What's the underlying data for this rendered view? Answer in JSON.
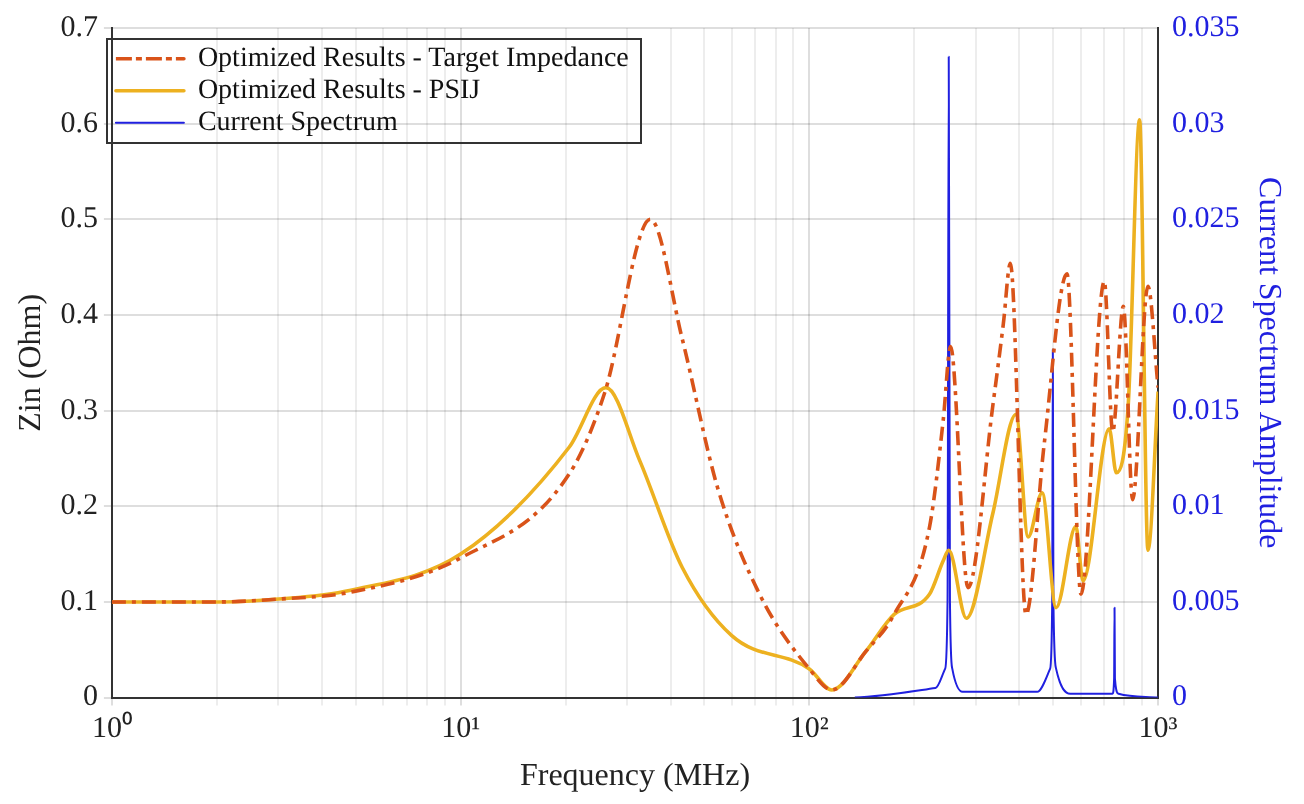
{
  "chart_data": {
    "type": "line",
    "xlabel": "Frequency (MHz)",
    "ylabel": "Zin (Ohm)",
    "y2label": "Current Spectrum Amplitude",
    "log": "x",
    "grid": true,
    "legend": "top left",
    "marker": "none",
    "xlim": [
      1,
      1000
    ],
    "xticks": [
      {
        "value": 1,
        "label": "10⁰"
      },
      {
        "value": 2,
        "label": null
      },
      {
        "value": 3,
        "label": null
      },
      {
        "value": 4,
        "label": null
      },
      {
        "value": 5,
        "label": null
      },
      {
        "value": 6,
        "label": null
      },
      {
        "value": 7,
        "label": null
      },
      {
        "value": 8,
        "label": null
      },
      {
        "value": 9,
        "label": null
      },
      {
        "value": 10,
        "label": "10¹"
      },
      {
        "value": 20,
        "label": null
      },
      {
        "value": 30,
        "label": null
      },
      {
        "value": 40,
        "label": null
      },
      {
        "value": 50,
        "label": null
      },
      {
        "value": 60,
        "label": null
      },
      {
        "value": 70,
        "label": null
      },
      {
        "value": 80,
        "label": null
      },
      {
        "value": 90,
        "label": null
      },
      {
        "value": 100,
        "label": "10²"
      },
      {
        "value": 200,
        "label": null
      },
      {
        "value": 300,
        "label": null
      },
      {
        "value": 400,
        "label": null
      },
      {
        "value": 500,
        "label": null
      },
      {
        "value": 600,
        "label": null
      },
      {
        "value": 700,
        "label": null
      },
      {
        "value": 800,
        "label": null
      },
      {
        "value": 900,
        "label": null
      },
      {
        "value": 1000,
        "label": "10³"
      }
    ],
    "ylim": [
      0,
      0.7
    ],
    "yticks": [
      0,
      0.1,
      0.2,
      0.3,
      0.4,
      0.5,
      0.6,
      0.7
    ],
    "y2lim": [
      0,
      0.035
    ],
    "y2ticks": [
      0,
      0.005,
      0.01,
      0.015,
      0.02,
      0.025,
      0.03,
      0.035
    ],
    "series": [
      {
        "name": "Optimized Results - Target Impedance",
        "color": "#d95319",
        "line_style": "dashed",
        "x": [
          1,
          2,
          3,
          4.8,
          10,
          20.5,
          25.9,
          35,
          43.2,
          54.5,
          72,
          100,
          116,
          145,
          175,
          221,
          242,
          254,
          285,
          336,
          360,
          377,
          418,
          471,
          548,
          601,
          701,
          741,
          795,
          845,
          935,
          1000
        ],
        "values": [
          0.1,
          0.1,
          0.103,
          0.11,
          0.146,
          0.234,
          0.319,
          0.5,
          0.375,
          0.22,
          0.108,
          0.03,
          0.008,
          0.048,
          0.087,
          0.178,
          0.29,
          0.367,
          0.115,
          0.306,
          0.391,
          0.454,
          0.087,
          0.264,
          0.443,
          0.108,
          0.435,
          0.278,
          0.409,
          0.207,
          0.43,
          0.324
        ]
      },
      {
        "name": "Optimized Results - PSIJ",
        "color": "#edb120",
        "line_style": "solid",
        "x": [
          1,
          2,
          3,
          4.8,
          10,
          20.5,
          26.1,
          32.6,
          43.2,
          59.8,
          100,
          116,
          145,
          175,
          221,
          242,
          251,
          282,
          336,
          391,
          424,
          465,
          510,
          581,
          609,
          724,
          759,
          821,
          885,
          935,
          1000
        ],
        "values": [
          0.1,
          0.1,
          0.103,
          0.112,
          0.15,
          0.262,
          0.324,
          0.248,
          0.136,
          0.065,
          0.03,
          0.008,
          0.048,
          0.087,
          0.108,
          0.143,
          0.154,
          0.083,
          0.193,
          0.296,
          0.168,
          0.214,
          0.094,
          0.179,
          0.122,
          0.281,
          0.235,
          0.306,
          0.604,
          0.154,
          0.32
        ]
      },
      {
        "name": "Current Spectrum",
        "color": "#2020e0",
        "line_style": "solid",
        "axis": "y2",
        "x": [
          135,
          230,
          245,
          249,
          251,
          253,
          257,
          275,
          450,
          490,
          497,
          499,
          501,
          510,
          560,
          740,
          748,
          750,
          752,
          770,
          1000
        ],
        "values": [
          0,
          0.0005,
          0.0015,
          0.005,
          0.0335,
          0.005,
          0.0015,
          0.0003,
          0.0003,
          0.0015,
          0.005,
          0.0182,
          0.005,
          0.0015,
          0.0002,
          0.0002,
          0.001,
          0.0047,
          0.001,
          0.0002,
          0
        ]
      }
    ]
  }
}
